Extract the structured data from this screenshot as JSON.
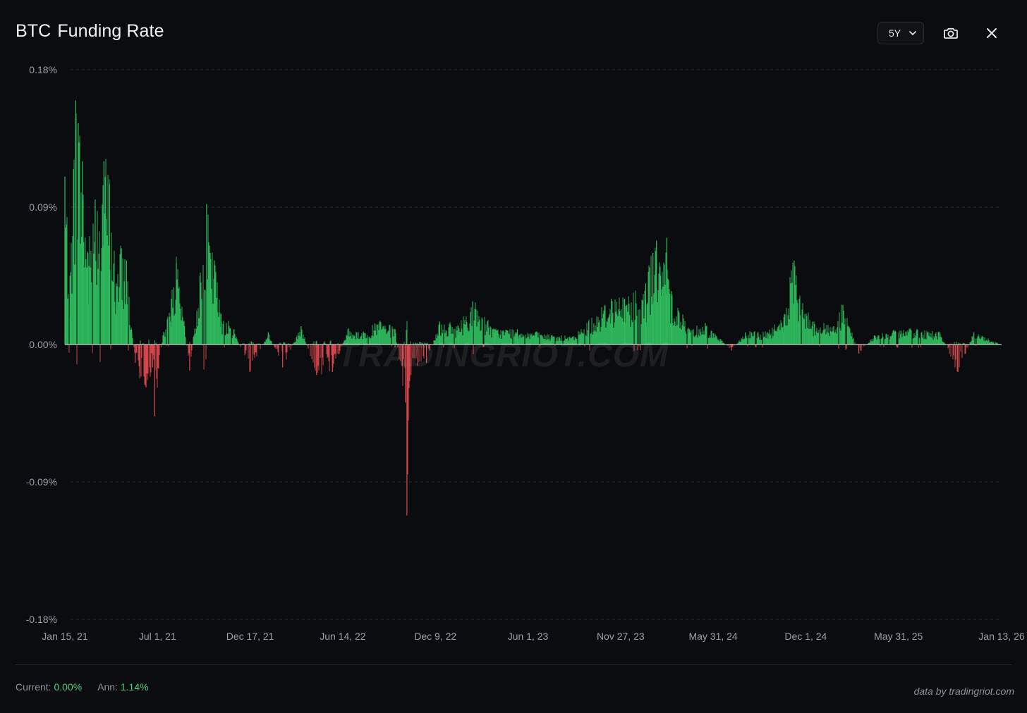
{
  "header": {
    "title_symbol": "BTC",
    "title_text": "Funding Rate",
    "range_value": "5Y"
  },
  "icons": {
    "camera": "camera-icon",
    "close": "close-icon",
    "dropdown": "chevron-down-icon"
  },
  "watermark": "TRADINGRIOT.COM",
  "footer": {
    "current_label": "Current:",
    "current_value": "0.00%",
    "ann_label": "Ann:",
    "ann_value": "1.14%",
    "credit": "data by tradingriot.com"
  },
  "colors": {
    "positive": "#2fbf5f",
    "negative": "#e0484f",
    "accent_text": "#4ad17a",
    "background": "#0b0c0f"
  },
  "chart_data": {
    "type": "bar",
    "title": "BTC Funding Rate",
    "ylim": [
      -0.18,
      0.18
    ],
    "yticks": [
      "0.18%",
      "0.09%",
      "0.00%",
      "-0.09%",
      "-0.18%"
    ],
    "ytick_values": [
      0.18,
      0.09,
      0.0,
      -0.09,
      -0.18
    ],
    "xticks": [
      "Jan 15, 21",
      "Jul 1, 21",
      "Dec 17, 21",
      "Jun 14, 22",
      "Dec 9, 22",
      "Jun 1, 23",
      "Nov 27, 23",
      "May 31, 24",
      "Dec 1, 24",
      "May 31, 25",
      "Jan 13, 26"
    ],
    "x_start": "2021-01-15",
    "x_end": "2026-01-13",
    "grid": true,
    "series": [
      {
        "values": [
          {
            "x": "2021-01-15",
            "y": 0.11
          },
          {
            "x": "2021-01-25",
            "y": 0.045
          },
          {
            "x": "2021-02-05",
            "y": 0.16
          },
          {
            "x": "2021-02-10",
            "y": 0.145
          },
          {
            "x": "2021-02-18",
            "y": 0.12
          },
          {
            "x": "2021-03-01",
            "y": 0.06
          },
          {
            "x": "2021-03-15",
            "y": 0.095
          },
          {
            "x": "2021-04-01",
            "y": 0.12
          },
          {
            "x": "2021-04-12",
            "y": 0.105
          },
          {
            "x": "2021-04-25",
            "y": 0.04
          },
          {
            "x": "2021-05-05",
            "y": 0.063
          },
          {
            "x": "2021-05-15",
            "y": 0.055
          },
          {
            "x": "2021-05-25",
            "y": 0.01
          },
          {
            "x": "2021-06-01",
            "y": -0.012
          },
          {
            "x": "2021-06-10",
            "y": -0.022
          },
          {
            "x": "2021-06-22",
            "y": -0.028
          },
          {
            "x": "2021-07-05",
            "y": -0.015
          },
          {
            "x": "2021-07-09",
            "y": -0.047
          },
          {
            "x": "2021-07-25",
            "y": 0.006
          },
          {
            "x": "2021-08-10",
            "y": 0.03
          },
          {
            "x": "2021-08-20",
            "y": 0.053
          },
          {
            "x": "2021-09-05",
            "y": 0.012
          },
          {
            "x": "2021-09-15",
            "y": -0.017
          },
          {
            "x": "2021-10-05",
            "y": 0.045
          },
          {
            "x": "2021-10-18",
            "y": 0.092
          },
          {
            "x": "2021-10-25",
            "y": 0.06
          },
          {
            "x": "2021-11-02",
            "y": 0.055
          },
          {
            "x": "2021-11-15",
            "y": 0.02
          },
          {
            "x": "2021-12-10",
            "y": 0.01
          },
          {
            "x": "2022-01-10",
            "y": -0.018
          },
          {
            "x": "2022-02-15",
            "y": 0.008
          },
          {
            "x": "2022-03-15",
            "y": -0.015
          },
          {
            "x": "2022-04-20",
            "y": 0.012
          },
          {
            "x": "2022-05-20",
            "y": -0.02
          },
          {
            "x": "2022-06-20",
            "y": -0.018
          },
          {
            "x": "2022-07-20",
            "y": 0.01
          },
          {
            "x": "2022-08-20",
            "y": 0.008
          },
          {
            "x": "2022-09-20",
            "y": 0.015
          },
          {
            "x": "2022-10-20",
            "y": 0.01
          },
          {
            "x": "2022-11-09",
            "y": -0.038
          },
          {
            "x": "2022-11-12",
            "y": -0.112
          },
          {
            "x": "2022-11-20",
            "y": -0.02
          },
          {
            "x": "2022-12-20",
            "y": -0.012
          },
          {
            "x": "2023-01-15",
            "y": 0.015
          },
          {
            "x": "2023-02-20",
            "y": 0.012
          },
          {
            "x": "2023-03-20",
            "y": 0.028
          },
          {
            "x": "2023-05-01",
            "y": 0.01
          },
          {
            "x": "2023-06-15",
            "y": 0.01
          },
          {
            "x": "2023-07-20",
            "y": 0.008
          },
          {
            "x": "2023-08-20",
            "y": 0.006
          },
          {
            "x": "2023-10-01",
            "y": 0.005
          },
          {
            "x": "2023-11-01",
            "y": 0.015
          },
          {
            "x": "2023-12-15",
            "y": 0.03
          },
          {
            "x": "2024-01-10",
            "y": 0.03
          },
          {
            "x": "2024-02-20",
            "y": 0.04
          },
          {
            "x": "2024-03-05",
            "y": 0.06
          },
          {
            "x": "2024-03-12",
            "y": 0.068
          },
          {
            "x": "2024-03-20",
            "y": 0.045
          },
          {
            "x": "2024-04-01",
            "y": 0.07
          },
          {
            "x": "2024-04-10",
            "y": 0.035
          },
          {
            "x": "2024-05-15",
            "y": 0.01
          },
          {
            "x": "2024-06-15",
            "y": 0.014
          },
          {
            "x": "2024-08-05",
            "y": -0.004
          },
          {
            "x": "2024-09-01",
            "y": 0.008
          },
          {
            "x": "2024-10-15",
            "y": 0.008
          },
          {
            "x": "2024-11-15",
            "y": 0.018
          },
          {
            "x": "2024-12-05",
            "y": 0.055
          },
          {
            "x": "2024-12-15",
            "y": 0.03
          },
          {
            "x": "2025-01-10",
            "y": 0.015
          },
          {
            "x": "2025-02-20",
            "y": 0.012
          },
          {
            "x": "2025-03-10",
            "y": 0.026
          },
          {
            "x": "2025-04-10",
            "y": -0.006
          },
          {
            "x": "2025-05-10",
            "y": 0.006
          },
          {
            "x": "2025-06-20",
            "y": 0.009
          },
          {
            "x": "2025-08-01",
            "y": 0.01
          },
          {
            "x": "2025-09-15",
            "y": 0.008
          },
          {
            "x": "2025-10-20",
            "y": -0.018
          },
          {
            "x": "2025-11-20",
            "y": 0.008
          },
          {
            "x": "2026-01-13",
            "y": 0.0
          }
        ]
      }
    ]
  }
}
